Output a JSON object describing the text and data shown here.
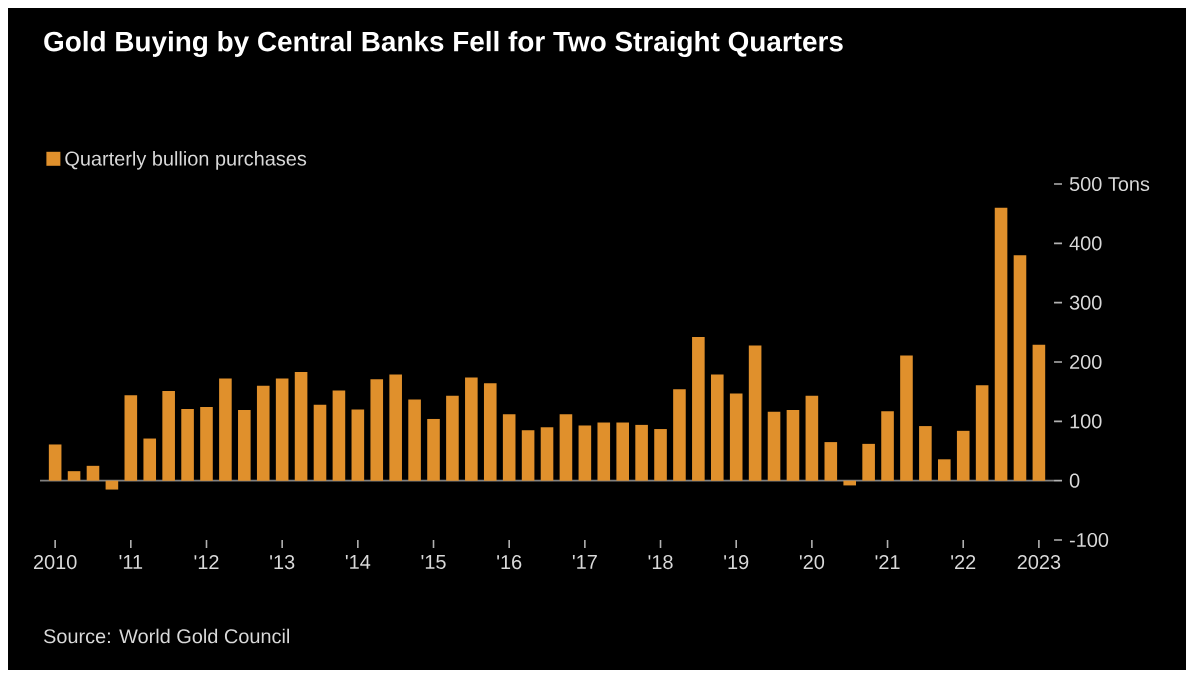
{
  "chart_data": {
    "type": "bar",
    "title": "Gold Buying by Central Banks Fell for Two Straight Quarters",
    "categories": [
      "2010",
      null,
      null,
      null,
      "'11",
      null,
      null,
      null,
      "'12",
      null,
      null,
      null,
      "'13",
      null,
      null,
      null,
      "'14",
      null,
      null,
      null,
      "'15",
      null,
      null,
      null,
      "'16",
      null,
      null,
      null,
      "'17",
      null,
      null,
      null,
      "'18",
      null,
      null,
      null,
      "'19",
      null,
      null,
      null,
      "'20",
      null,
      null,
      null,
      "'21",
      null,
      null,
      null,
      "'22",
      null,
      null,
      null,
      "2023"
    ],
    "series": [
      {
        "name": "Quarterly bullion purchases",
        "color": "#e0902c",
        "values": [
          61,
          16,
          25,
          -15,
          144,
          71,
          151,
          121,
          124,
          172,
          119,
          160,
          172,
          183,
          128,
          152,
          120,
          171,
          179,
          137,
          104,
          143,
          174,
          164,
          112,
          85,
          90,
          112,
          93,
          98,
          98,
          94,
          87,
          154,
          242,
          179,
          147,
          228,
          116,
          119,
          143,
          65,
          -8,
          62,
          117,
          211,
          92,
          36,
          84,
          161,
          460,
          380,
          229
        ]
      }
    ],
    "ylim": [
      -100,
      500
    ],
    "yticks": [
      -100,
      0,
      100,
      200,
      300,
      400,
      {
        "value": 500,
        "label": "500 Tons"
      }
    ],
    "ref_lines": [
      {
        "axis": "y",
        "value": 0,
        "color": "#7f7f7f"
      }
    ],
    "legend": "top left",
    "annotations": [
      "Source: World Gold Council"
    ]
  }
}
